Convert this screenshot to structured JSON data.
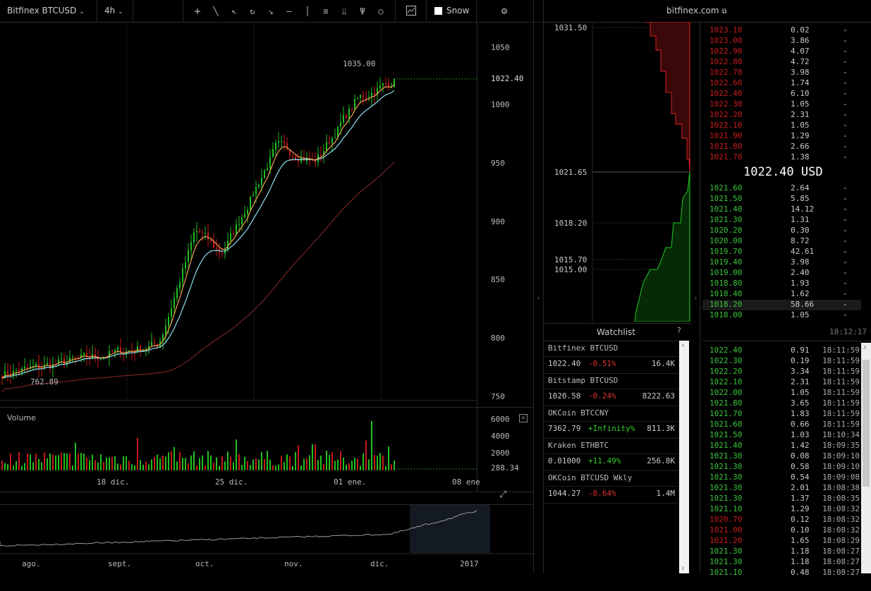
{
  "toolbar": {
    "symbol": "Bitfinex BTCUSD",
    "interval": "4h",
    "snow_label": "Snow",
    "site_link": "bitfinex.com"
  },
  "price_chart": {
    "y_ticks": [
      "1050",
      "1000",
      "950",
      "900",
      "850",
      "800",
      "750"
    ],
    "last_price_label": "1022.40",
    "high_label": "1035.00",
    "low_label": "762.89",
    "x_ticks": [
      "18 dic.",
      "25 dic.",
      "01 ene.",
      "08 ene"
    ],
    "volume_title": "Volume",
    "volume_ticks": [
      "6000",
      "4000",
      "2000"
    ],
    "last_volume_label": "288.34",
    "colors": {
      "up": "#21c021",
      "down": "#c81a1a",
      "ema_fast": "#f0a050",
      "ema_slow": "#8fe0f0",
      "sma_long": "#8a2a2a"
    }
  },
  "navigator": {
    "labels": [
      "ago.",
      "sept.",
      "oct.",
      "nov.",
      "dic.",
      "2017"
    ]
  },
  "depth": {
    "labels": [
      "1031.50",
      "1021.65",
      "1018.20",
      "1015.70",
      "1015.00"
    ]
  },
  "orderbook": {
    "asks": [
      {
        "price": "1023.10",
        "amount": "0.02",
        "total": "-"
      },
      {
        "price": "1023.00",
        "amount": "3.86",
        "total": "-"
      },
      {
        "price": "1022.90",
        "amount": "4.07",
        "total": "-"
      },
      {
        "price": "1022.80",
        "amount": "4.72",
        "total": "-"
      },
      {
        "price": "1022.70",
        "amount": "3.98",
        "total": "-"
      },
      {
        "price": "1022.60",
        "amount": "1.74",
        "total": "-"
      },
      {
        "price": "1022.40",
        "amount": "6.10",
        "total": "-"
      },
      {
        "price": "1022.30",
        "amount": "1.05",
        "total": "-"
      },
      {
        "price": "1022.20",
        "amount": "2.31",
        "total": "-"
      },
      {
        "price": "1022.10",
        "amount": "1.05",
        "total": "-"
      },
      {
        "price": "1021.90",
        "amount": "1.29",
        "total": "-"
      },
      {
        "price": "1021.80",
        "amount": "2.66",
        "total": "-"
      },
      {
        "price": "1021.70",
        "amount": "1.38",
        "total": "-"
      }
    ],
    "mid_price": "1022.40 USD",
    "bids": [
      {
        "price": "1021.60",
        "amount": "2.64",
        "total": "-"
      },
      {
        "price": "1021.50",
        "amount": "5.85",
        "total": "-"
      },
      {
        "price": "1021.40",
        "amount": "14.12",
        "total": "-"
      },
      {
        "price": "1021.30",
        "amount": "1.31",
        "total": "-"
      },
      {
        "price": "1020.20",
        "amount": "0.30",
        "total": "-"
      },
      {
        "price": "1020.00",
        "amount": "8.72",
        "total": "-"
      },
      {
        "price": "1019.70",
        "amount": "42.61",
        "total": "-"
      },
      {
        "price": "1019.40",
        "amount": "3.98",
        "total": "-"
      },
      {
        "price": "1019.00",
        "amount": "2.40",
        "total": "-"
      },
      {
        "price": "1018.80",
        "amount": "1.93",
        "total": "-"
      },
      {
        "price": "1018.40",
        "amount": "1.62",
        "total": "-"
      },
      {
        "price": "1018.20",
        "amount": "58.66",
        "total": "-"
      },
      {
        "price": "1018.00",
        "amount": "1.05",
        "total": "-"
      }
    ],
    "time": "18:12:17"
  },
  "watchlist": {
    "title": "Watchlist",
    "help": "?",
    "items": [
      {
        "name": "Bitfinex BTCUSD",
        "price": "1022.40",
        "change": "-0.51%",
        "change_color": "#e03030",
        "volume": "16.4K"
      },
      {
        "name": "Bitstamp BTCUSD",
        "price": "1020.58",
        "change": "-0.24%",
        "change_color": "#e03030",
        "volume": "8222.63"
      },
      {
        "name": "OKCoin BTCCNY",
        "price": "7362.79",
        "change": "+Infinity%",
        "change_color": "#30d030",
        "volume": "811.3K"
      },
      {
        "name": "Kraken ETHBTC",
        "price": "0.01000",
        "change": "+11.49%",
        "change_color": "#30d030",
        "volume": "256.8K"
      },
      {
        "name": "OKCoin BTCUSD Wkly",
        "price": "1044.27",
        "change": "-0.64%",
        "change_color": "#e03030",
        "volume": "1.4M"
      }
    ]
  },
  "trades": [
    {
      "price": "1022.40",
      "amount": "0.91",
      "time": "18:11:59",
      "side": "buy"
    },
    {
      "price": "1022.30",
      "amount": "0.19",
      "time": "18:11:59",
      "side": "buy"
    },
    {
      "price": "1022.20",
      "amount": "3.34",
      "time": "18:11:59",
      "side": "buy"
    },
    {
      "price": "1022.10",
      "amount": "2.31",
      "time": "18:11:59",
      "side": "buy"
    },
    {
      "price": "1022.00",
      "amount": "1.05",
      "time": "18:11:59",
      "side": "buy"
    },
    {
      "price": "1021.80",
      "amount": "3.65",
      "time": "18:11:59",
      "side": "buy"
    },
    {
      "price": "1021.70",
      "amount": "1.83",
      "time": "18:11:59",
      "side": "buy"
    },
    {
      "price": "1021.60",
      "amount": "0.66",
      "time": "18:11:59",
      "side": "buy"
    },
    {
      "price": "1021.50",
      "amount": "1.03",
      "time": "18:10:34",
      "side": "buy"
    },
    {
      "price": "1021.40",
      "amount": "1.42",
      "time": "18:09:35",
      "side": "buy"
    },
    {
      "price": "1021.30",
      "amount": "0.08",
      "time": "18:09:10",
      "side": "buy"
    },
    {
      "price": "1021.30",
      "amount": "0.58",
      "time": "18:09:10",
      "side": "buy"
    },
    {
      "price": "1021.30",
      "amount": "0.54",
      "time": "18:09:08",
      "side": "buy"
    },
    {
      "price": "1021.30",
      "amount": "2.01",
      "time": "18:08:38",
      "side": "buy"
    },
    {
      "price": "1021.30",
      "amount": "1.37",
      "time": "18:08:35",
      "side": "buy"
    },
    {
      "price": "1021.10",
      "amount": "1.29",
      "time": "18:08:32",
      "side": "buy"
    },
    {
      "price": "1020.70",
      "amount": "0.12",
      "time": "18:08:32",
      "side": "sell"
    },
    {
      "price": "1021.00",
      "amount": "0.10",
      "time": "18:08:32",
      "side": "sell"
    },
    {
      "price": "1021.20",
      "amount": "1.65",
      "time": "18:08:29",
      "side": "sell"
    },
    {
      "price": "1021.30",
      "amount": "1.18",
      "time": "18:08:27",
      "side": "buy"
    },
    {
      "price": "1021.30",
      "amount": "1.18",
      "time": "18:08:27",
      "side": "buy"
    },
    {
      "price": "1021.10",
      "amount": "0.48",
      "time": "18:08:27",
      "side": "buy"
    }
  ]
}
